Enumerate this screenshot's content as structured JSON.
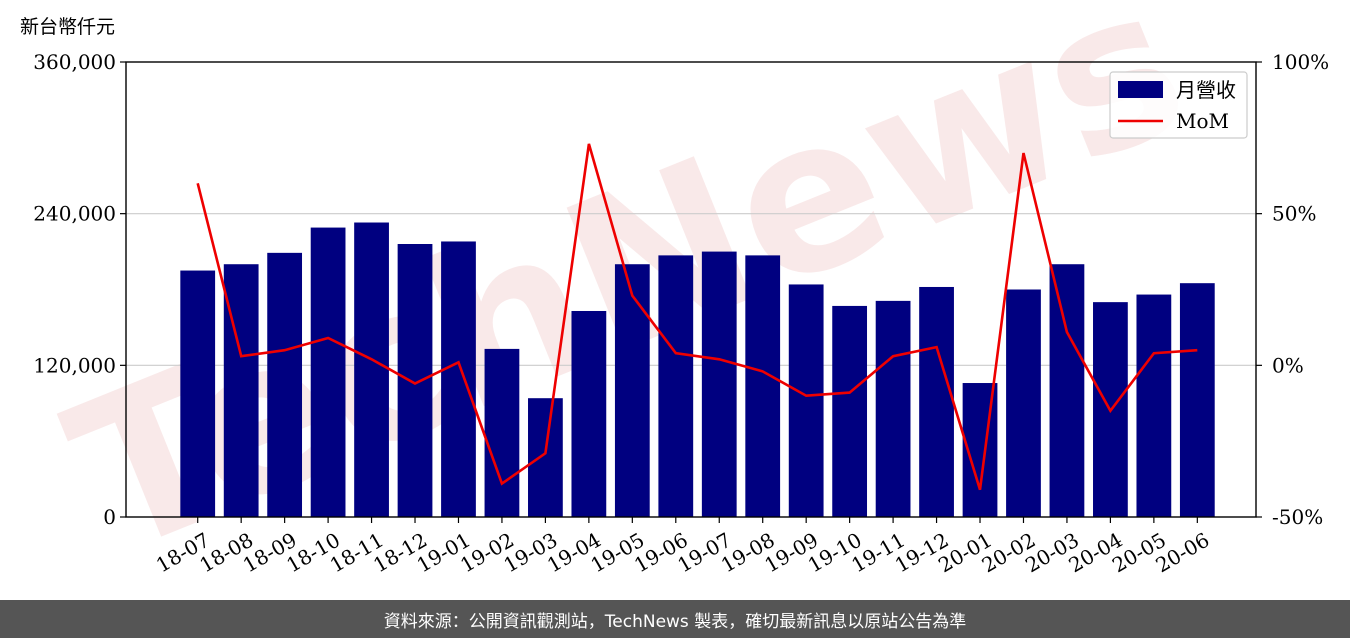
{
  "chart_data": {
    "type": "bar",
    "unit_label": "新台幣仟元",
    "categories": [
      "18-07",
      "18-08",
      "18-09",
      "18-10",
      "18-11",
      "18-12",
      "19-01",
      "19-02",
      "19-03",
      "19-04",
      "19-05",
      "19-06",
      "19-07",
      "19-08",
      "19-09",
      "19-10",
      "19-11",
      "19-12",
      "20-01",
      "20-02",
      "20-03",
      "20-04",
      "20-05",
      "20-06"
    ],
    "series": [
      {
        "name": "月營收",
        "axis": "left",
        "type": "bar",
        "color": "#000080",
        "values": [
          195000,
          200000,
          209000,
          229000,
          233000,
          216000,
          218000,
          133000,
          94000,
          163000,
          200000,
          207000,
          210000,
          207000,
          184000,
          167000,
          171000,
          182000,
          106000,
          180000,
          200000,
          170000,
          176000,
          185000
        ]
      },
      {
        "name": "MoM",
        "axis": "right",
        "type": "line",
        "color": "#ee0000",
        "values": [
          60,
          3,
          5,
          9,
          2,
          -6,
          1,
          -39,
          -29,
          73,
          23,
          4,
          2,
          -2,
          -10,
          -9,
          3,
          6,
          -41,
          70,
          11,
          -15,
          4,
          5
        ]
      }
    ],
    "left_axis": {
      "ylim": [
        0,
        360000
      ],
      "ticks": [
        "0",
        "120,000",
        "240,000",
        "360,000"
      ]
    },
    "right_axis": {
      "ylim": [
        -50,
        100
      ],
      "ticks": [
        "-50%",
        "0%",
        "50%",
        "100%"
      ]
    },
    "grid": "horizontal",
    "legend_position": "top-right",
    "watermark": "TechNews"
  },
  "footer": {
    "text": "資料來源：公開資訊觀測站，TechNews 製表，確切最新訊息以原站公告為準"
  }
}
